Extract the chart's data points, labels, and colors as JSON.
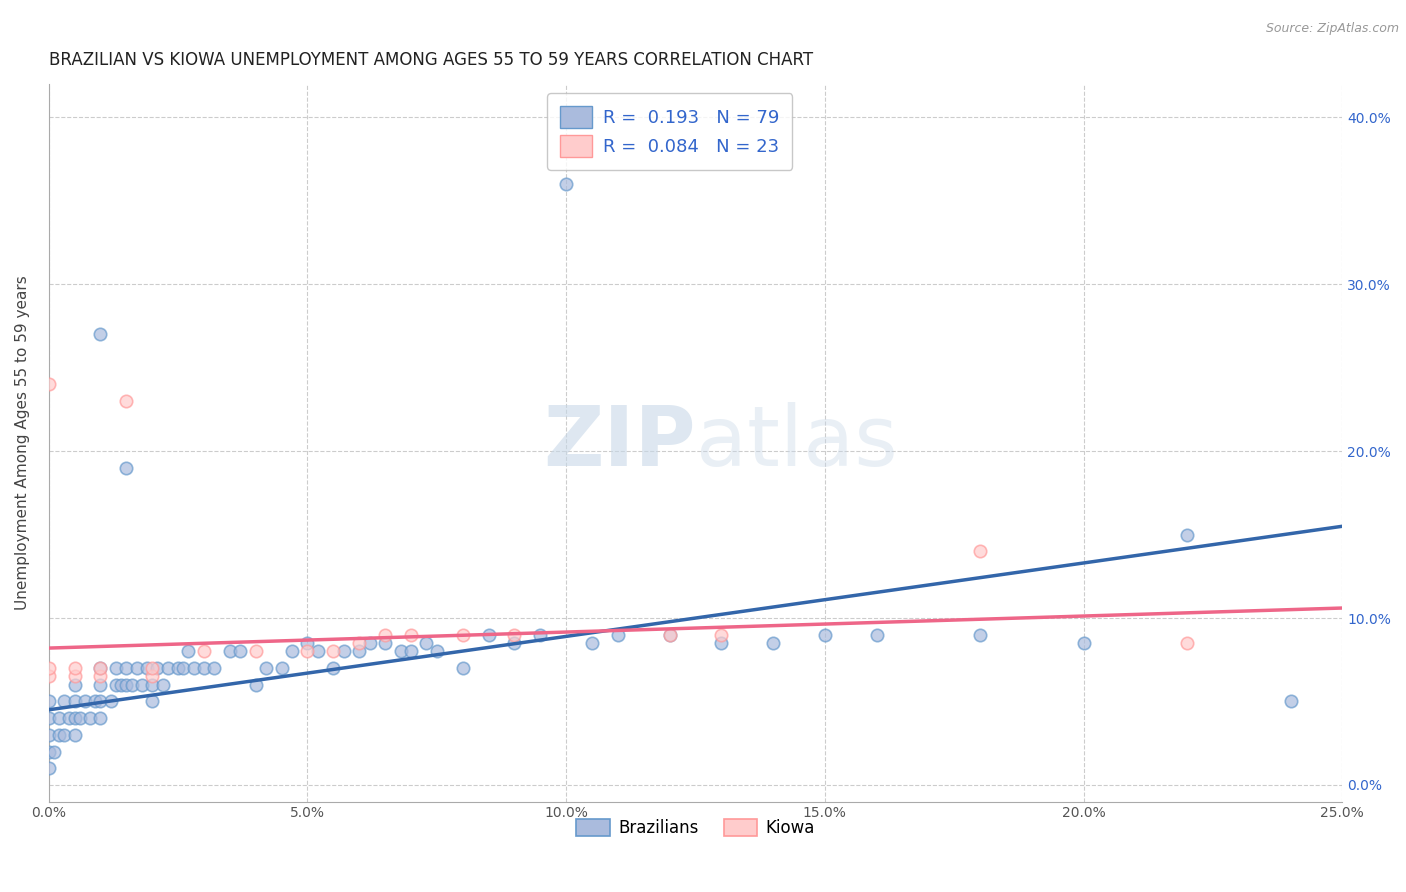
{
  "title": "BRAZILIAN VS KIOWA UNEMPLOYMENT AMONG AGES 55 TO 59 YEARS CORRELATION CHART",
  "source": "Source: ZipAtlas.com",
  "ylabel": "Unemployment Among Ages 55 to 59 years",
  "xlim": [
    0.0,
    0.25
  ],
  "ylim": [
    -0.01,
    0.42
  ],
  "xticks": [
    0.0,
    0.05,
    0.1,
    0.15,
    0.2,
    0.25
  ],
  "yticks": [
    0.0,
    0.1,
    0.2,
    0.3,
    0.4
  ],
  "xticklabels": [
    "0.0%",
    "5.0%",
    "10.0%",
    "15.0%",
    "20.0%",
    "25.0%"
  ],
  "yticklabels_right": [
    "0.0%",
    "10.0%",
    "20.0%",
    "30.0%",
    "40.0%"
  ],
  "grid_color": "#cccccc",
  "background_color": "#ffffff",
  "legend_r1": "R =  0.193",
  "legend_n1": "N = 79",
  "legend_r2": "R =  0.084",
  "legend_n2": "N = 23",
  "blue_fill": "#aabbdd",
  "blue_edge": "#6699cc",
  "pink_fill": "#ffcccc",
  "pink_edge": "#ff9999",
  "blue_line_color": "#3366aa",
  "pink_line_color": "#ee6688",
  "text_blue": "#3366cc",
  "text_dark": "#333333",
  "blue_scatter_x": [
    0.0,
    0.0,
    0.0,
    0.0,
    0.0,
    0.001,
    0.002,
    0.002,
    0.003,
    0.003,
    0.004,
    0.005,
    0.005,
    0.005,
    0.005,
    0.006,
    0.007,
    0.008,
    0.009,
    0.01,
    0.01,
    0.01,
    0.01,
    0.01,
    0.012,
    0.013,
    0.013,
    0.014,
    0.015,
    0.015,
    0.015,
    0.016,
    0.017,
    0.018,
    0.019,
    0.02,
    0.02,
    0.021,
    0.022,
    0.023,
    0.025,
    0.026,
    0.027,
    0.028,
    0.03,
    0.032,
    0.035,
    0.037,
    0.04,
    0.042,
    0.045,
    0.047,
    0.05,
    0.052,
    0.055,
    0.057,
    0.06,
    0.062,
    0.065,
    0.068,
    0.07,
    0.073,
    0.075,
    0.08,
    0.085,
    0.09,
    0.095,
    0.1,
    0.105,
    0.11,
    0.12,
    0.13,
    0.14,
    0.15,
    0.16,
    0.18,
    0.2,
    0.22,
    0.24
  ],
  "blue_scatter_y": [
    0.01,
    0.02,
    0.03,
    0.04,
    0.05,
    0.02,
    0.03,
    0.04,
    0.03,
    0.05,
    0.04,
    0.03,
    0.04,
    0.05,
    0.06,
    0.04,
    0.05,
    0.04,
    0.05,
    0.04,
    0.05,
    0.06,
    0.07,
    0.27,
    0.05,
    0.06,
    0.07,
    0.06,
    0.06,
    0.07,
    0.19,
    0.06,
    0.07,
    0.06,
    0.07,
    0.05,
    0.06,
    0.07,
    0.06,
    0.07,
    0.07,
    0.07,
    0.08,
    0.07,
    0.07,
    0.07,
    0.08,
    0.08,
    0.06,
    0.07,
    0.07,
    0.08,
    0.085,
    0.08,
    0.07,
    0.08,
    0.08,
    0.085,
    0.085,
    0.08,
    0.08,
    0.085,
    0.08,
    0.07,
    0.09,
    0.085,
    0.09,
    0.36,
    0.085,
    0.09,
    0.09,
    0.085,
    0.085,
    0.09,
    0.09,
    0.09,
    0.085,
    0.15,
    0.05
  ],
  "pink_scatter_x": [
    0.0,
    0.0,
    0.0,
    0.005,
    0.005,
    0.01,
    0.01,
    0.015,
    0.02,
    0.02,
    0.03,
    0.04,
    0.05,
    0.055,
    0.06,
    0.065,
    0.07,
    0.08,
    0.09,
    0.12,
    0.13,
    0.18,
    0.22
  ],
  "pink_scatter_y": [
    0.065,
    0.07,
    0.24,
    0.065,
    0.07,
    0.065,
    0.07,
    0.23,
    0.065,
    0.07,
    0.08,
    0.08,
    0.08,
    0.08,
    0.085,
    0.09,
    0.09,
    0.09,
    0.09,
    0.09,
    0.09,
    0.14,
    0.085
  ],
  "blue_trend_x": [
    0.0,
    0.25
  ],
  "blue_trend_y": [
    0.045,
    0.155
  ],
  "pink_trend_x": [
    0.0,
    0.25
  ],
  "pink_trend_y": [
    0.082,
    0.106
  ],
  "legend_label1": "Brazilians",
  "legend_label2": "Kiowa",
  "title_fontsize": 12,
  "axis_fontsize": 11,
  "tick_fontsize": 10,
  "legend_fontsize": 13
}
